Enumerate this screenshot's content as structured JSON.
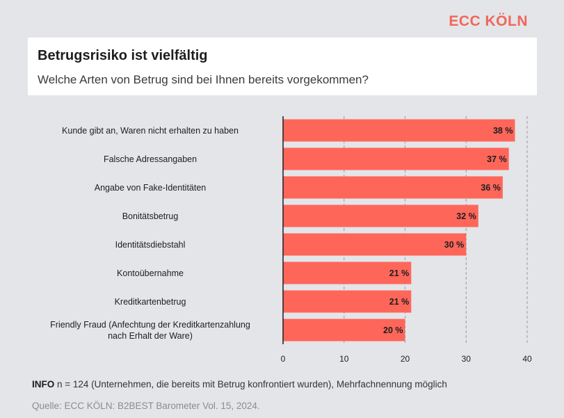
{
  "brand": "ECC KÖLN",
  "header": {
    "title": "Betrugsrisiko ist vielfältig",
    "subtitle": "Welche Arten von Betrug sind bei Ihnen bereits vorgekommen?"
  },
  "footer": {
    "info_label": "INFO",
    "info_text": " n = 124 (Unternehmen, die bereits mit Betrug konfrontiert wurden), Mehrfachnennung möglich",
    "source": "Quelle: ECC KÖLN: B2BEST Barometer Vol. 15, 2024."
  },
  "chart_data": {
    "type": "bar",
    "orientation": "horizontal",
    "title": "Betrugsrisiko ist vielfältig",
    "subtitle": "Welche Arten von Betrug sind bei Ihnen bereits vorgekommen?",
    "categories": [
      [
        "Kunde gibt an, Waren nicht erhalten zu haben"
      ],
      [
        "Falsche Adressangaben"
      ],
      [
        "Angabe von Fake-Identitäten"
      ],
      [
        "Bonitätsbetrug"
      ],
      [
        "Identitätsdiebstahl"
      ],
      [
        "Kontoübernahme"
      ],
      [
        "Kreditkartenbetrug"
      ],
      [
        "Friendly Fraud (Anfechtung der Kreditkartenzahlung",
        "nach Erhalt der Ware)"
      ]
    ],
    "values": [
      38,
      37,
      36,
      32,
      30,
      21,
      21,
      20
    ],
    "value_suffix": " %",
    "xlim": [
      0,
      40
    ],
    "xticks": [
      0,
      10,
      20,
      30,
      40
    ],
    "grid": "vertical dashed",
    "bar_color": "#ff665a"
  }
}
